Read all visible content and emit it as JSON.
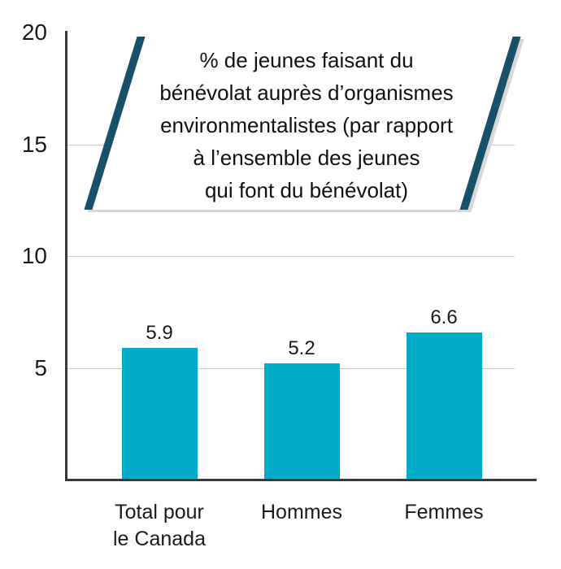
{
  "chart_data": {
    "type": "bar",
    "title": "% de jeunes faisant du bénévolat auprès d’organismes environmentalistes (par rapport à l’ensemble des jeunes qui font du bénévolat)",
    "title_lines": [
      "% de jeunes faisant du",
      "bénévolat auprès d’organismes",
      "environmentalistes (par rapport",
      "à l’ensemble des jeunes",
      "qui font du bénévolat)"
    ],
    "categories": [
      "Total pour le Canada",
      "Hommes",
      "Femmes"
    ],
    "category_label_lines": [
      [
        "Total pour",
        "le Canada"
      ],
      [
        "Hommes"
      ],
      [
        "Femmes"
      ]
    ],
    "values": [
      5.9,
      5.2,
      6.6
    ],
    "value_labels": [
      "5.9",
      "5.2",
      "6.6"
    ],
    "xlabel": "",
    "ylabel": "",
    "ylim": [
      0,
      20
    ],
    "y_ticks": [
      20,
      15,
      10,
      5
    ],
    "grid": true,
    "legend": null,
    "colors": {
      "bar": "#00acc6",
      "banner_slash_teal": "#16506b",
      "banner_shadow_gray": "#d8d8d8",
      "gridline_gray": "#c9c9c9",
      "axis_dark": "#383838",
      "text": "#1a1a1a"
    }
  }
}
